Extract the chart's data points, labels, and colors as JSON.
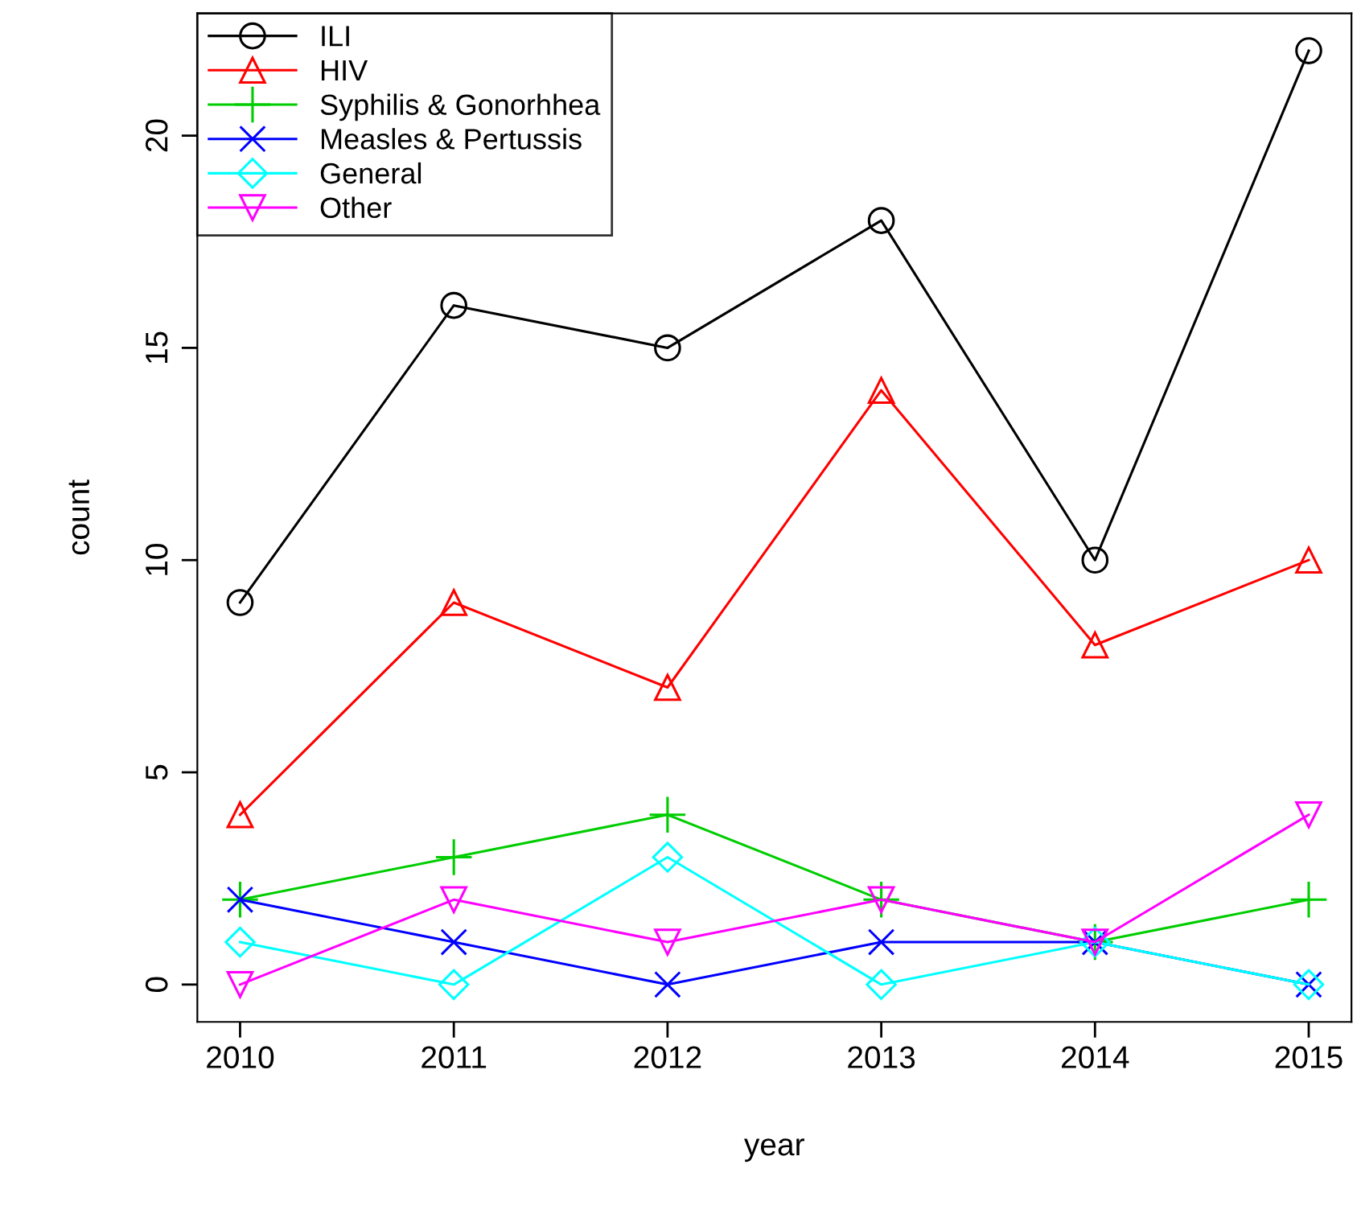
{
  "chart_data": {
    "type": "line",
    "xlabel": "year",
    "ylabel": "count",
    "x": [
      2010,
      2011,
      2012,
      2013,
      2014,
      2015
    ],
    "xlim": [
      2009.8,
      2015.2
    ],
    "xticks": [
      2010,
      2011,
      2012,
      2013,
      2014,
      2015
    ],
    "ylim": [
      -0.88,
      22.88
    ],
    "yticks": [
      0,
      5,
      10,
      15,
      20
    ],
    "grid": false,
    "legend": "top left",
    "series": [
      {
        "name": "ILI",
        "color": "#000000",
        "marker": "circle",
        "values": [
          9,
          16,
          15,
          18,
          10,
          22
        ]
      },
      {
        "name": "HIV",
        "color": "#ff0000",
        "marker": "triangle",
        "values": [
          4,
          9,
          7,
          14,
          8,
          10
        ]
      },
      {
        "name": "Syphilis & Gonorhhea",
        "color": "#00cd00",
        "marker": "cross",
        "values": [
          2,
          3,
          4,
          2,
          1,
          2
        ]
      },
      {
        "name": "Measles & Pertussis",
        "color": "#0000ff",
        "marker": "x",
        "values": [
          2,
          1,
          0,
          1,
          1,
          0
        ]
      },
      {
        "name": "General",
        "color": "#00ffff",
        "marker": "diamond",
        "values": [
          1,
          0,
          3,
          0,
          1,
          0
        ]
      },
      {
        "name": "Other",
        "color": "#ff00ff",
        "marker": "triangle_down",
        "values": [
          0,
          2,
          1,
          2,
          1,
          4
        ]
      }
    ]
  }
}
